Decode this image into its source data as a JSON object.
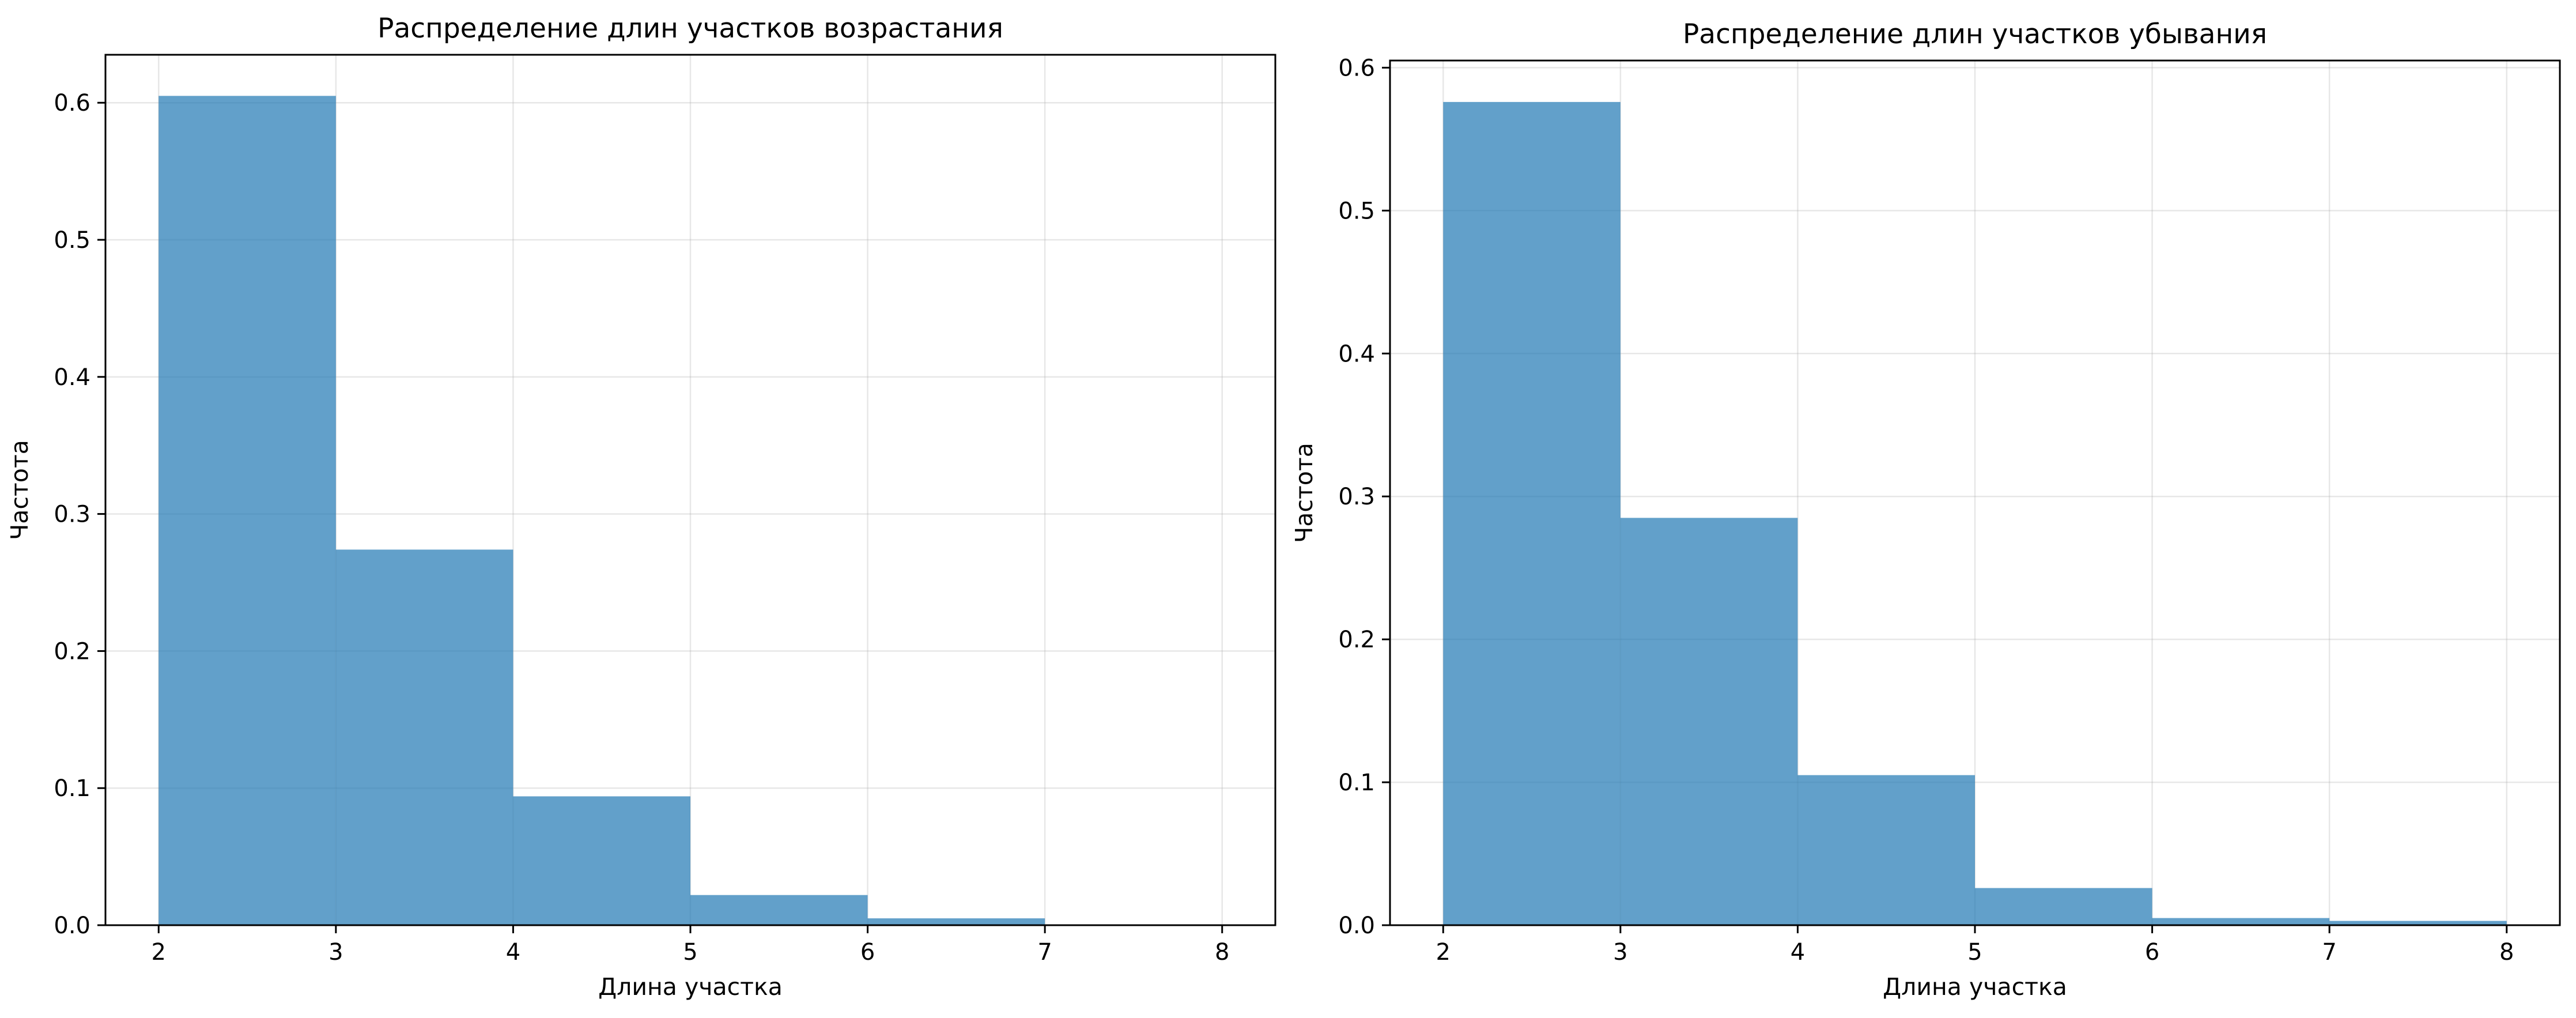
{
  "chart_data": [
    {
      "type": "bar",
      "title": "Распределение длин участков возрастания",
      "xlabel": "Длина участка",
      "ylabel": "Частота",
      "bin_edges": [
        2,
        3,
        4,
        5,
        6,
        7,
        8
      ],
      "values": [
        0.605,
        0.274,
        0.094,
        0.022,
        0.005,
        0.0
      ],
      "xlim": [
        1.7,
        8.3
      ],
      "ylim": [
        0,
        0.635
      ],
      "xticks": [
        2,
        3,
        4,
        5,
        6,
        7,
        8
      ],
      "yticks": [
        0.0,
        0.1,
        0.2,
        0.3,
        0.4,
        0.5,
        0.6
      ],
      "ytick_labels": [
        "0.0",
        "0.1",
        "0.2",
        "0.3",
        "0.4",
        "0.5",
        "0.6"
      ],
      "grid": true,
      "bar_color": "#1f77b4",
      "bar_alpha": 0.7
    },
    {
      "type": "bar",
      "title": "Распределение длин участков убывания",
      "xlabel": "Длина участка",
      "ylabel": "Частота",
      "bin_edges": [
        2,
        3,
        4,
        5,
        6,
        7,
        8
      ],
      "values": [
        0.576,
        0.285,
        0.105,
        0.026,
        0.005,
        0.003
      ],
      "xlim": [
        1.7,
        8.3
      ],
      "ylim": [
        0,
        0.605
      ],
      "xticks": [
        2,
        3,
        4,
        5,
        6,
        7,
        8
      ],
      "yticks": [
        0.0,
        0.1,
        0.2,
        0.3,
        0.4,
        0.5,
        0.6
      ],
      "ytick_labels": [
        "0.0",
        "0.1",
        "0.2",
        "0.3",
        "0.4",
        "0.5",
        "0.6"
      ],
      "grid": true,
      "bar_color": "#1f77b4",
      "bar_alpha": 0.7
    }
  ]
}
